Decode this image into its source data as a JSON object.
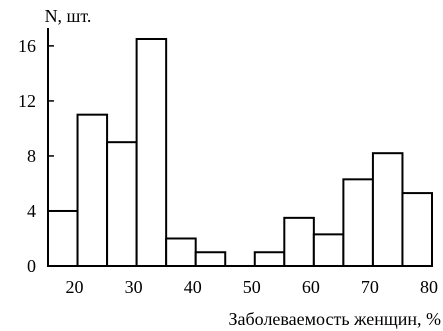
{
  "chart_data": {
    "type": "bar",
    "ylabel": "N, шт.",
    "xlabel": "Заболеваемость женщин, %",
    "y_ticks": [
      "0",
      "4",
      "8",
      "12",
      "16"
    ],
    "x_ticks": [
      "20",
      "30",
      "40",
      "50",
      "60",
      "70",
      "80"
    ],
    "xlim": [
      15,
      80
    ],
    "ylim": [
      0,
      17.3
    ],
    "bins": [
      {
        "x0": 15,
        "x1": 20,
        "value": 4
      },
      {
        "x0": 20,
        "x1": 25,
        "value": 11
      },
      {
        "x0": 25,
        "x1": 30,
        "value": 9
      },
      {
        "x0": 30,
        "x1": 35,
        "value": 16.5
      },
      {
        "x0": 35,
        "x1": 40,
        "value": 2
      },
      {
        "x0": 40,
        "x1": 45,
        "value": 1
      },
      {
        "x0": 45,
        "x1": 50,
        "value": 0
      },
      {
        "x0": 50,
        "x1": 55,
        "value": 1
      },
      {
        "x0": 55,
        "x1": 60,
        "value": 3.5
      },
      {
        "x0": 60,
        "x1": 65,
        "value": 2.3
      },
      {
        "x0": 65,
        "x1": 70,
        "value": 6.3
      },
      {
        "x0": 70,
        "x1": 75,
        "value": 8.2
      },
      {
        "x0": 75,
        "x1": 80,
        "value": 5.3
      }
    ]
  }
}
